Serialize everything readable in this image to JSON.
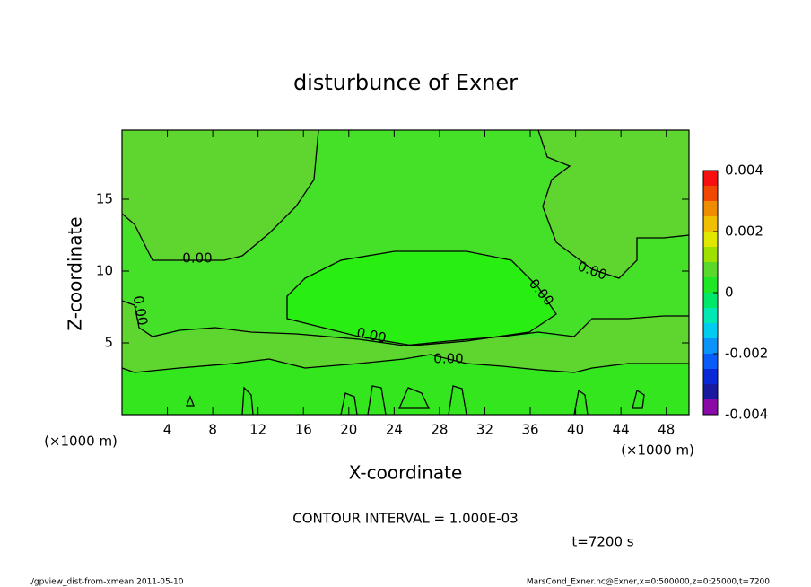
{
  "chart_data": {
    "type": "contour",
    "title": "disturbunce of Exner",
    "x_label": "X-coordinate",
    "y_label": "Z-coordinate",
    "x_unit_left": "(×1000 m)",
    "x_unit_right": "(×1000 m)",
    "xlim": [
      0,
      50
    ],
    "xticks": [
      4,
      8,
      12,
      16,
      20,
      24,
      28,
      32,
      36,
      40,
      44,
      48
    ],
    "ylim": [
      0,
      20
    ],
    "yticks": [
      5,
      10,
      15
    ],
    "contour_levels": [
      0
    ],
    "contour_labels": [
      "0.00",
      "0.00",
      "0.00",
      "0.00",
      "0.00",
      "0.00"
    ],
    "colorbar": {
      "levels": [
        -0.004,
        -0.0035,
        -0.003,
        -0.0025,
        -0.002,
        -0.0015,
        -0.001,
        -0.0005,
        0,
        0.0005,
        0.001,
        0.0015,
        0.002,
        0.0025,
        0.003,
        0.0035,
        0.004
      ],
      "colors": [
        "#8a0aa8",
        "#1a1aa0",
        "#0a28d8",
        "#0a5cf8",
        "#0a94fa",
        "#00ccf0",
        "#00e8b4",
        "#00e86a",
        "#20e626",
        "#5ad82c",
        "#a0e000",
        "#e0e800",
        "#f0c000",
        "#f08c00",
        "#f04800",
        "#f81010"
      ],
      "ticks": [
        0.004,
        0.002,
        0,
        -0.002,
        -0.004
      ]
    },
    "contour_interval_text": "CONTOUR INTERVAL = 1.000E-03",
    "time_text": "t=7200 s",
    "footer_left": "./gpview_dist-from-xmean  2011-05-10",
    "footer_right": "MarsCond_Exner.nc@Exner,x=0:500000,z=0:25000,t=7200"
  }
}
